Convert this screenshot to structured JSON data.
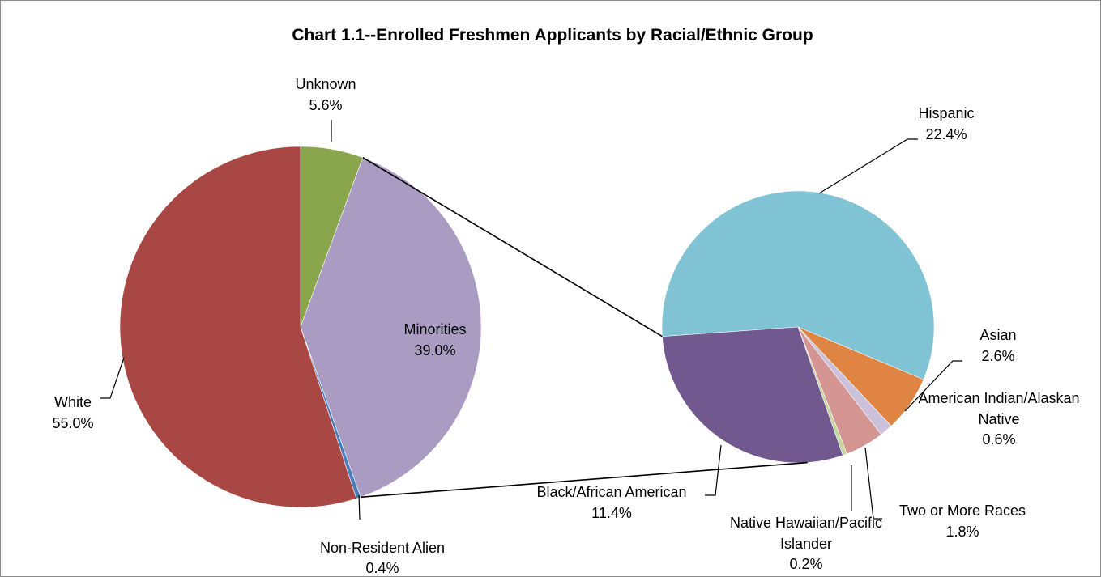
{
  "chart_data": [
    {
      "type": "pie",
      "title": "Chart 1.1--Enrolled Freshmen Applicants by Racial/Ethnic Group",
      "slices": [
        {
          "label": "Unknown",
          "value": 5.6,
          "value_label": "5.6%",
          "color": "#8AA64D"
        },
        {
          "label": "Minorities",
          "value": 39.0,
          "value_label": "39.0%",
          "color": "#A99BC1"
        },
        {
          "label": "Non-Resident Alien",
          "value": 0.4,
          "value_label": "0.4%",
          "color": "#4A7EBB"
        },
        {
          "label": "White",
          "value": 55.0,
          "value_label": "55.0%",
          "color": "#A84743"
        }
      ],
      "exploded_slice": "Minorities"
    },
    {
      "type": "pie",
      "breakdown_of": "Minorities",
      "slices": [
        {
          "label": "Hispanic",
          "value": 22.4,
          "value_label": "22.4%",
          "color": "#80C3D4"
        },
        {
          "label": "Asian",
          "value": 2.6,
          "value_label": "2.6%",
          "color": "#DF8442"
        },
        {
          "label": "American Indian/Alaskan Native",
          "label_lines": [
            "American Indian/Alaskan",
            "Native"
          ],
          "value": 0.6,
          "value_label": "0.6%",
          "color": "#CCC1DA"
        },
        {
          "label": "Two or More Races",
          "value": 1.8,
          "value_label": "1.8%",
          "color": "#D49593"
        },
        {
          "label": "Native Hawaiian/Pacific Islander",
          "label_lines": [
            "Native Hawaiian/Pacific",
            "Islander"
          ],
          "value": 0.2,
          "value_label": "0.2%",
          "color": "#C3D69B"
        },
        {
          "label": "Black/African American",
          "value": 11.4,
          "value_label": "11.4%",
          "color": "#71588F"
        }
      ]
    }
  ]
}
